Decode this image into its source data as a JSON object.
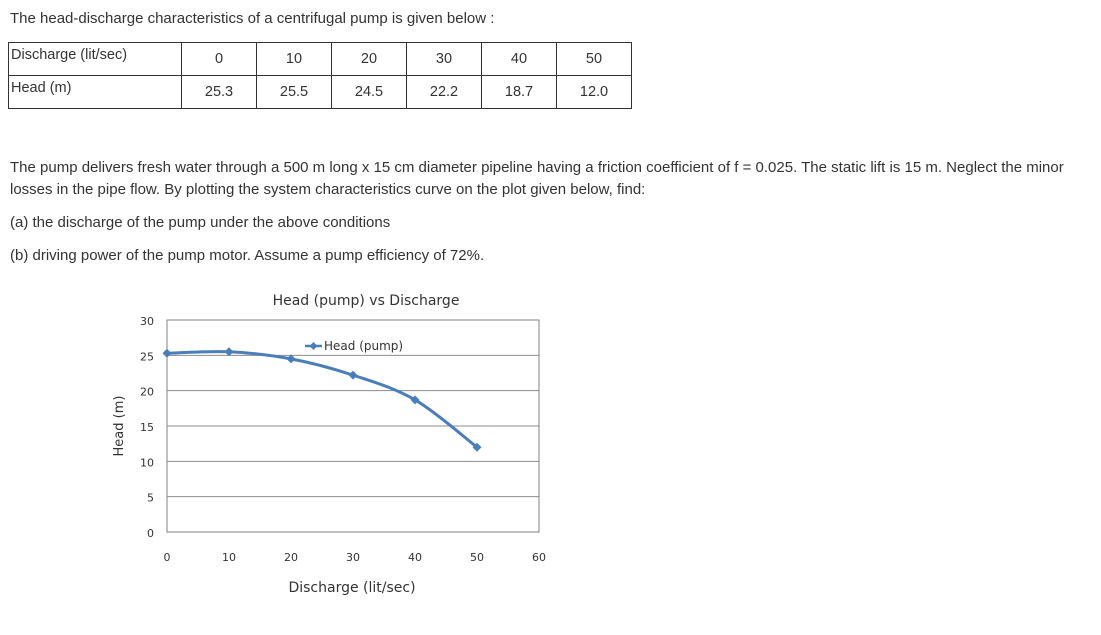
{
  "intro": "The head-discharge characteristics of a centrifugal pump is given below :",
  "table": {
    "rows": [
      {
        "label": "Discharge (lit/sec)",
        "values": [
          "0",
          "10",
          "20",
          "30",
          "40",
          "50"
        ]
      },
      {
        "label": "Head (m)",
        "values": [
          "25.3",
          "25.5",
          "24.5",
          "22.2",
          "18.7",
          "12.0"
        ]
      }
    ]
  },
  "problem": {
    "statement": "The pump delivers fresh water through a 500 m long x 15 cm diameter pipeline having a friction coefficient of f = 0.025. The static lift is 15 m. Neglect the minor losses in the pipe flow. By plotting the system characteristics curve on the plot given below, find:",
    "part_a": "(a) the discharge of the pump under the above conditions",
    "part_b": "(b) driving power of the pump motor. Assume a pump efficiency of 72%."
  },
  "chart_data": {
    "type": "line",
    "title": "Head (pump) vs Discharge",
    "xlabel": "Discharge (lit/sec)",
    "ylabel": "Head (m)",
    "xlim": [
      0,
      60
    ],
    "ylim": [
      0,
      30
    ],
    "xticks": [
      "0",
      "10",
      "20",
      "30",
      "40",
      "50",
      "60"
    ],
    "yticks": [
      "0",
      "5",
      "10",
      "15",
      "20",
      "25",
      "30"
    ],
    "grid": "horizontal",
    "legend": "top-center",
    "line_color": "#4a7ebb",
    "series": [
      {
        "name": "Head (pump)",
        "x": [
          0,
          10,
          20,
          30,
          40,
          50
        ],
        "y": [
          25.3,
          25.5,
          24.5,
          22.2,
          18.7,
          12.0
        ]
      }
    ]
  }
}
